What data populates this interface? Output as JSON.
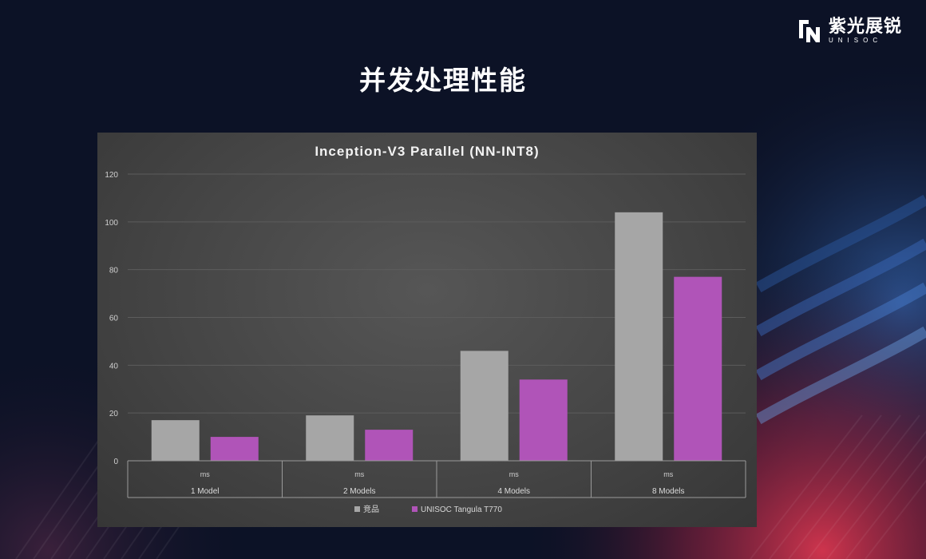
{
  "brand": {
    "name_cn": "紫光展锐",
    "name_en": "UNISOC"
  },
  "page_title": "并发处理性能",
  "colors": {
    "background": "#0c1226",
    "accent_red": "#c0304a",
    "accent_blue": "#2a5aa8",
    "panel": "#474747",
    "series_1": "#a6a6a6",
    "series_2": "#b054b8"
  },
  "chart_data": {
    "type": "bar",
    "title": "Inception-V3 Parallel (NN-INT8)",
    "categories": [
      "1 Model",
      "2 Models",
      "4 Models",
      "8 Models"
    ],
    "category_sublabels": [
      "ms",
      "ms",
      "ms",
      "ms"
    ],
    "series": [
      {
        "name": "竞品",
        "color": "#a6a6a6",
        "values": [
          17,
          19,
          46,
          104
        ]
      },
      {
        "name": "UNISOC Tangula T770",
        "color": "#b054b8",
        "values": [
          10,
          13,
          34,
          77
        ]
      }
    ],
    "ylim": [
      0,
      120
    ],
    "yticks": [
      0,
      20,
      40,
      60,
      80,
      100,
      120
    ],
    "grid": true,
    "legend_position": "bottom"
  }
}
